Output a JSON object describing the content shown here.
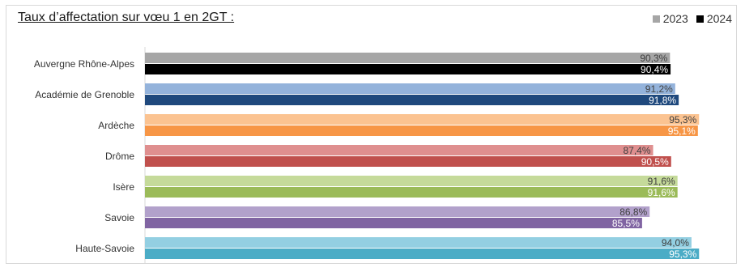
{
  "title": "Taux d’affectation sur vœu 1 en 2GT :",
  "legend": [
    {
      "label": "2023",
      "color": "#a6a6a6"
    },
    {
      "label": "2024",
      "color": "#000000"
    }
  ],
  "chart_data": {
    "type": "bar",
    "orientation": "horizontal",
    "title": "Taux d’affectation sur vœu 1 en 2GT :",
    "xlabel": "",
    "ylabel": "",
    "categories": [
      "Auvergne Rhône-Alpes",
      "Académie de Grenoble",
      "Ardèche",
      "Drôme",
      "Isère",
      "Savoie",
      "Haute-Savoie"
    ],
    "series": [
      {
        "name": "2023",
        "values": [
          90.3,
          91.2,
          95.3,
          87.4,
          91.6,
          86.8,
          94.0
        ],
        "labels": [
          "90,3%",
          "91,2%",
          "95,3%",
          "87,4%",
          "91,6%",
          "86,8%",
          "94,0%"
        ],
        "colors": [
          "#a6a6a6",
          "#94b3db",
          "#fbc391",
          "#df8f8f",
          "#c5da9a",
          "#b2a1cb",
          "#93cfe2"
        ],
        "label_colors": [
          "#404040",
          "#404040",
          "#404040",
          "#404040",
          "#404040",
          "#404040",
          "#404040"
        ]
      },
      {
        "name": "2024",
        "values": [
          90.4,
          91.8,
          95.1,
          90.5,
          91.6,
          85.5,
          95.3
        ],
        "labels": [
          "90,4%",
          "91,8%",
          "95,1%",
          "90,5%",
          "91,6%",
          "85,5%",
          "95,3%"
        ],
        "colors": [
          "#000000",
          "#1f497d",
          "#f79646",
          "#c0504d",
          "#9bbb59",
          "#8064a2",
          "#4bacc6"
        ],
        "label_colors": [
          "#ffffff",
          "#ffffff",
          "#ffffff",
          "#ffffff",
          "#ffffff",
          "#ffffff",
          "#ffffff"
        ]
      }
    ],
    "grid": false,
    "legend_position": "top-right"
  }
}
